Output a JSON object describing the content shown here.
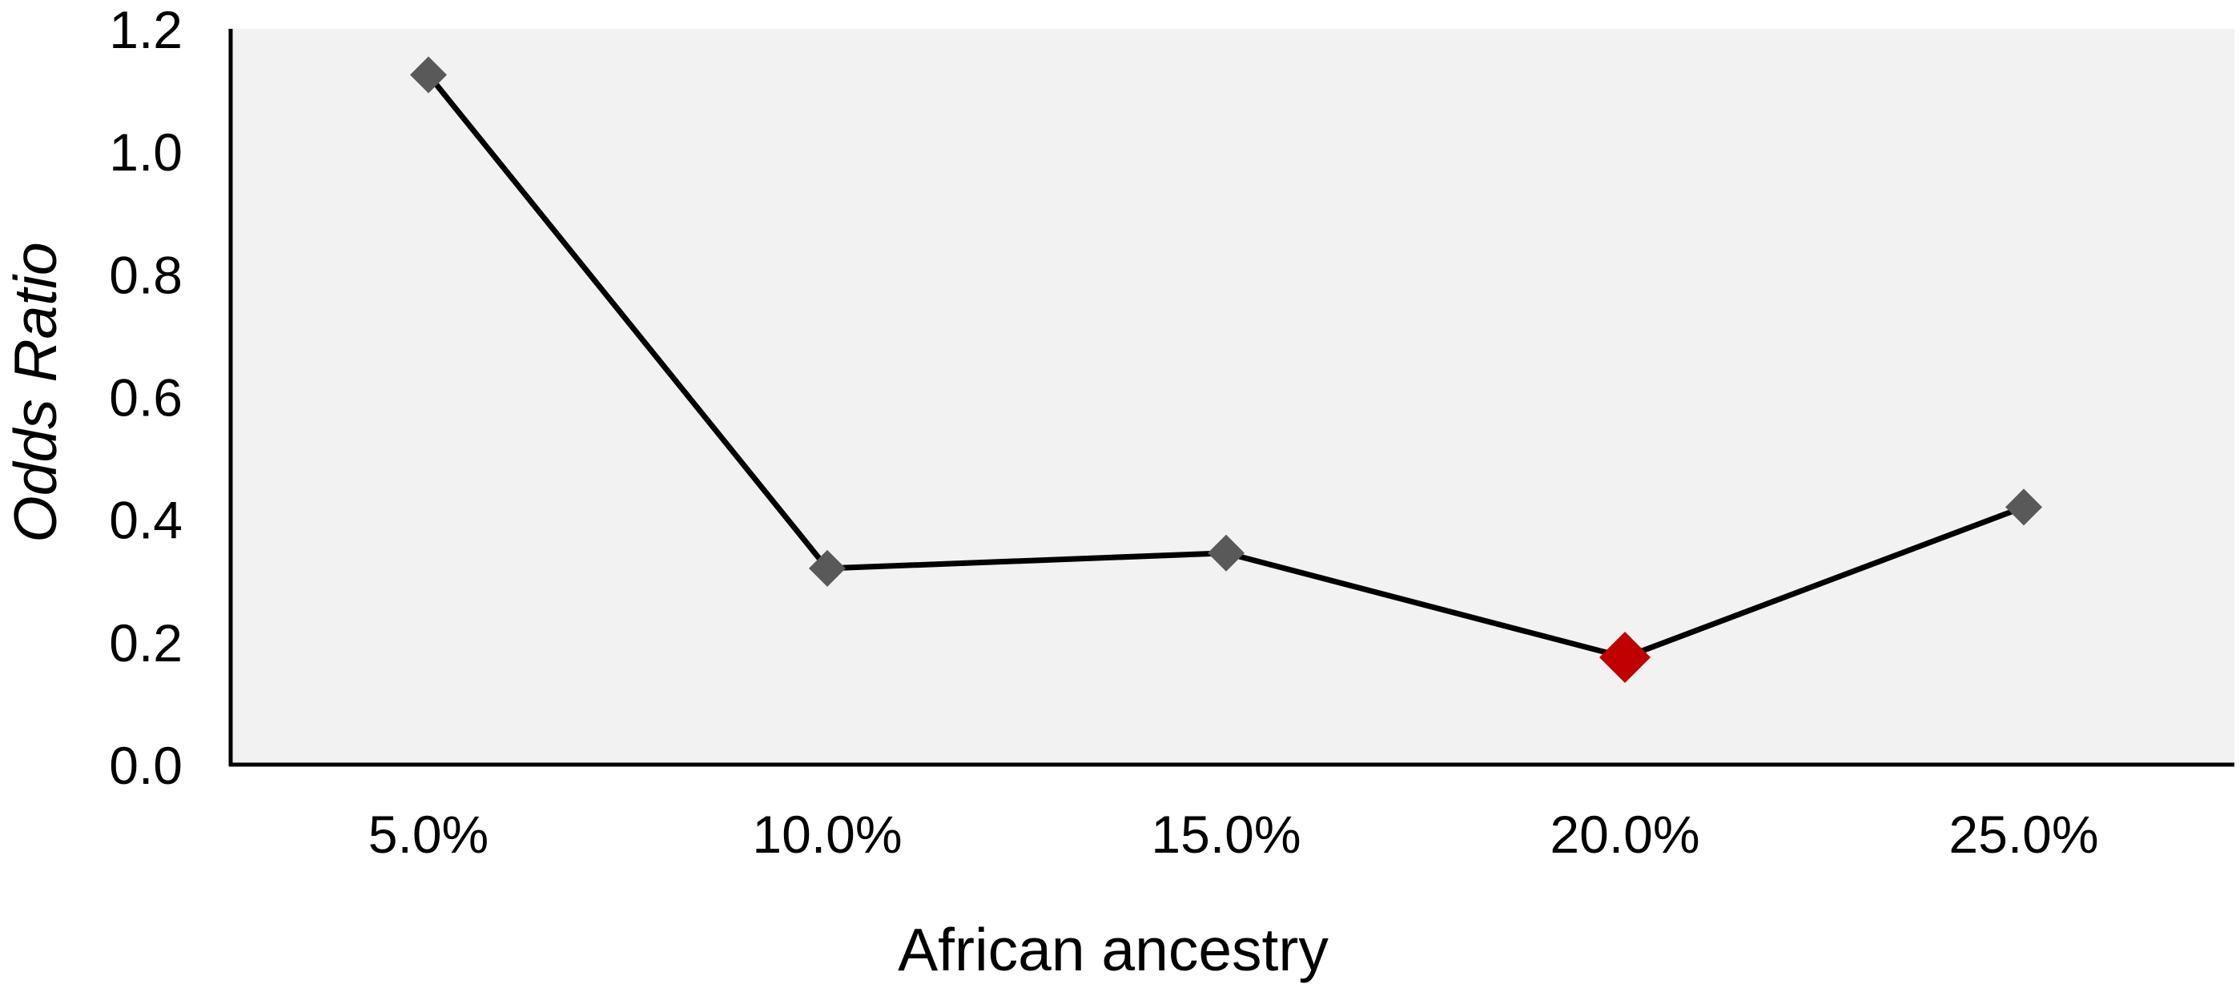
{
  "chart_data": {
    "type": "line",
    "title": "",
    "xlabel": "African ancestry",
    "ylabel_parts": [
      {
        "text": "Odds ",
        "italic": true
      },
      {
        "text": "Ratio",
        "italic": true
      }
    ],
    "categories": [
      "5.0%",
      "10.0%",
      "15.0%",
      "20.0%",
      "25.0%"
    ],
    "series": [
      {
        "values": [
          1.125,
          0.32,
          0.345,
          0.175,
          0.42
        ]
      }
    ],
    "highlight_index": 3,
    "ylim": [
      0,
      1.2
    ],
    "yticks": [
      0.0,
      0.2,
      0.4,
      0.6,
      0.8,
      1.0,
      1.2
    ],
    "ytick_labels": [
      "0.0",
      "0.2",
      "0.4",
      "0.6",
      "0.8",
      "1.0",
      "1.2"
    ],
    "grid": false,
    "colors": {
      "plot_background": "#f2f2f2",
      "line": "#000000",
      "marker": "#595959",
      "highlight_marker": "#c00000",
      "axis": "#000000"
    }
  }
}
